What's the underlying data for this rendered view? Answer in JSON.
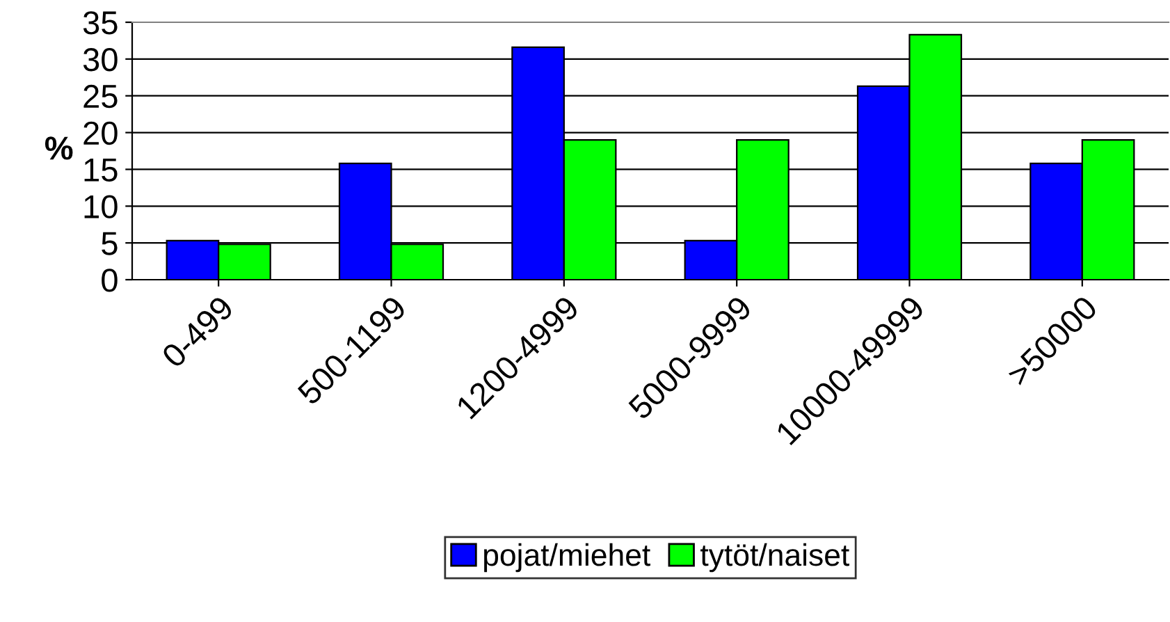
{
  "chart_data": {
    "type": "bar",
    "ylabel": "%",
    "categories": [
      "0-499",
      "500-1199",
      "1200-4999",
      "5000-9999",
      "10000-49999",
      ">50000"
    ],
    "series": [
      {
        "name": "pojat/miehet",
        "color": "#0000ff",
        "values": [
          5.3,
          15.8,
          31.6,
          5.3,
          26.3,
          15.8
        ]
      },
      {
        "name": "tytöt/naiset",
        "color": "#00ff00",
        "values": [
          4.8,
          4.8,
          19.0,
          19.0,
          33.3,
          19.0
        ]
      }
    ],
    "ylim": [
      0,
      35
    ],
    "yticks": [
      0,
      5,
      10,
      15,
      20,
      25,
      30,
      35
    ],
    "grid": "y",
    "legend": "bottom"
  }
}
